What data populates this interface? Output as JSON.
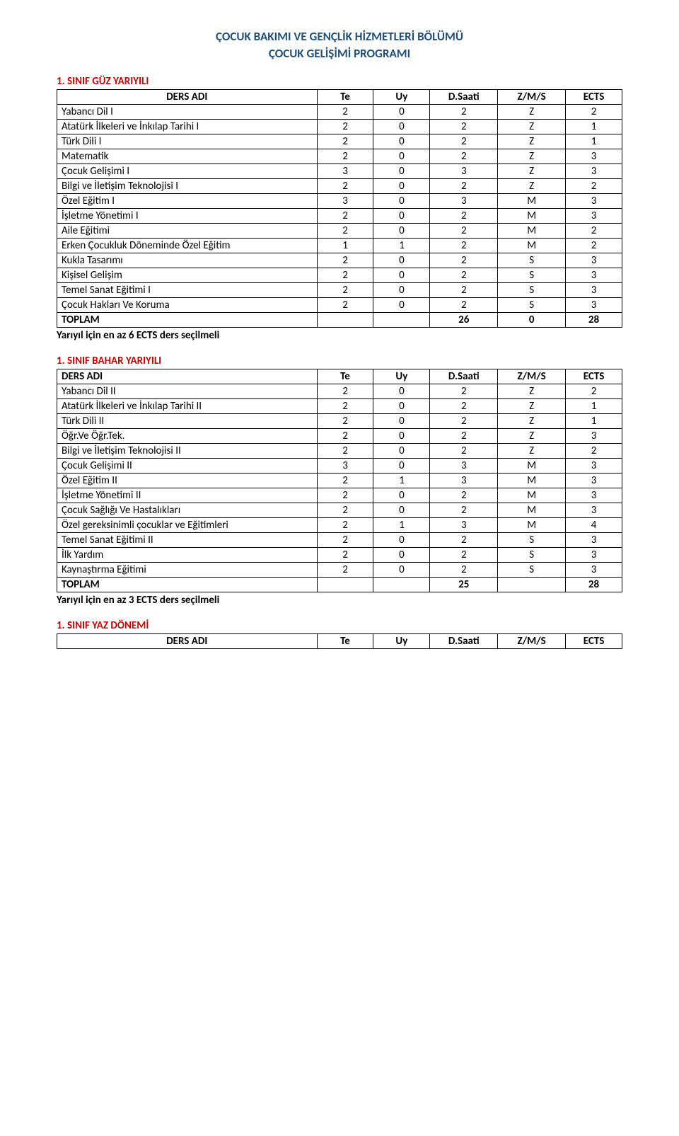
{
  "header": {
    "title_line1": "ÇOCUK BAKIMI VE GENÇLİK HİZMETLERİ BÖLÜMÜ",
    "title_line2": "ÇOCUK GELİŞİMİ PROGRAMI"
  },
  "tables": {
    "columns": [
      "DERS ADI",
      "Te",
      "Uy",
      "D.Saati",
      "Z/M/S",
      "ECTS"
    ],
    "guz": {
      "title": "1. SINIF GÜZ YARIYILI",
      "rows": [
        [
          "Yabancı Dil I",
          "2",
          "0",
          "2",
          "Z",
          "2"
        ],
        [
          "Atatürk İlkeleri ve İnkılap Tarihi I",
          "2",
          "0",
          "2",
          "Z",
          "1"
        ],
        [
          "Türk Dili I",
          "2",
          "0",
          "2",
          "Z",
          "1"
        ],
        [
          "Matematik",
          "2",
          "0",
          "2",
          "Z",
          "3"
        ],
        [
          "Çocuk Gelişimi I",
          "3",
          "0",
          "3",
          "Z",
          "3"
        ],
        [
          "Bilgi ve İletişim Teknolojisi I",
          "2",
          "0",
          "2",
          "Z",
          "2"
        ],
        [
          "Özel Eğitim I",
          "3",
          "0",
          "3",
          "M",
          "3"
        ],
        [
          "İşletme Yönetimi I",
          "2",
          "0",
          "2",
          "M",
          "3"
        ],
        [
          "Aile Eğitimi",
          "2",
          "0",
          "2",
          "M",
          "2"
        ],
        [
          "Erken Çocukluk Döneminde Özel Eğitim",
          "1",
          "1",
          "2",
          "M",
          "2"
        ],
        [
          "Kukla Tasarımı",
          "2",
          "0",
          "2",
          "S",
          "3"
        ],
        [
          "Kişisel Gelişim",
          "2",
          "0",
          "2",
          "S",
          "3"
        ],
        [
          "Temel Sanat Eğitimi I",
          "2",
          "0",
          "2",
          "S",
          "3"
        ],
        [
          "Çocuk Hakları Ve Koruma",
          "2",
          "0",
          "2",
          "S",
          "3"
        ]
      ],
      "toplam": [
        "TOPLAM",
        "",
        "",
        "26",
        "0",
        "28"
      ],
      "note": "Yarıyıl için en az 6 ECTS ders seçilmeli"
    },
    "bahar": {
      "title": "1. SINIF BAHAR YARIYILI",
      "rows": [
        [
          "Yabancı Dil II",
          "2",
          "0",
          "2",
          "Z",
          "2"
        ],
        [
          "Atatürk İlkeleri ve İnkılap Tarihi II",
          "2",
          "0",
          "2",
          "Z",
          "1"
        ],
        [
          "Türk Dili II",
          "2",
          "0",
          "2",
          "Z",
          "1"
        ],
        [
          "Öğr.Ve Öğr.Tek.",
          "2",
          "0",
          "2",
          "Z",
          "3"
        ],
        [
          "Bilgi ve İletişim Teknolojisi II",
          "2",
          "0",
          "2",
          "Z",
          "2"
        ],
        [
          "Çocuk Gelişimi II",
          "3",
          "0",
          "3",
          "M",
          "3"
        ],
        [
          "Özel Eğitim II",
          "2",
          "1",
          "3",
          "M",
          "3"
        ],
        [
          "İşletme Yönetimi II",
          "2",
          "0",
          "2",
          "M",
          "3"
        ],
        [
          "Çocuk Sağlığı Ve Hastalıkları",
          "2",
          "0",
          "2",
          "M",
          "3"
        ],
        [
          "Özel gereksinimli çocuklar ve Eğitimleri",
          "2",
          "1",
          "3",
          "M",
          "4"
        ],
        [
          "Temel Sanat Eğitimi II",
          "2",
          "0",
          "2",
          "S",
          "3"
        ],
        [
          "İlk Yardım",
          "2",
          "0",
          "2",
          "S",
          "3"
        ],
        [
          "Kaynaştırma Eğitimi",
          "2",
          "0",
          "2",
          "S",
          "3"
        ]
      ],
      "toplam": [
        "TOPLAM",
        "",
        "",
        "25",
        "",
        "28"
      ],
      "note": "Yarıyıl için en az 3 ECTS ders seçilmeli"
    },
    "yaz": {
      "title": "1. SINIF YAZ DÖNEMİ"
    }
  },
  "style": {
    "column_widths": [
      "46%",
      "10%",
      "10%",
      "12%",
      "12%",
      "10%"
    ],
    "colors": {
      "header": "#1f4e79",
      "section": "#c00000",
      "text": "#000000",
      "border": "#000000",
      "background": "#ffffff"
    },
    "fontsize": {
      "header": 17,
      "section": 15,
      "table": 15
    }
  }
}
